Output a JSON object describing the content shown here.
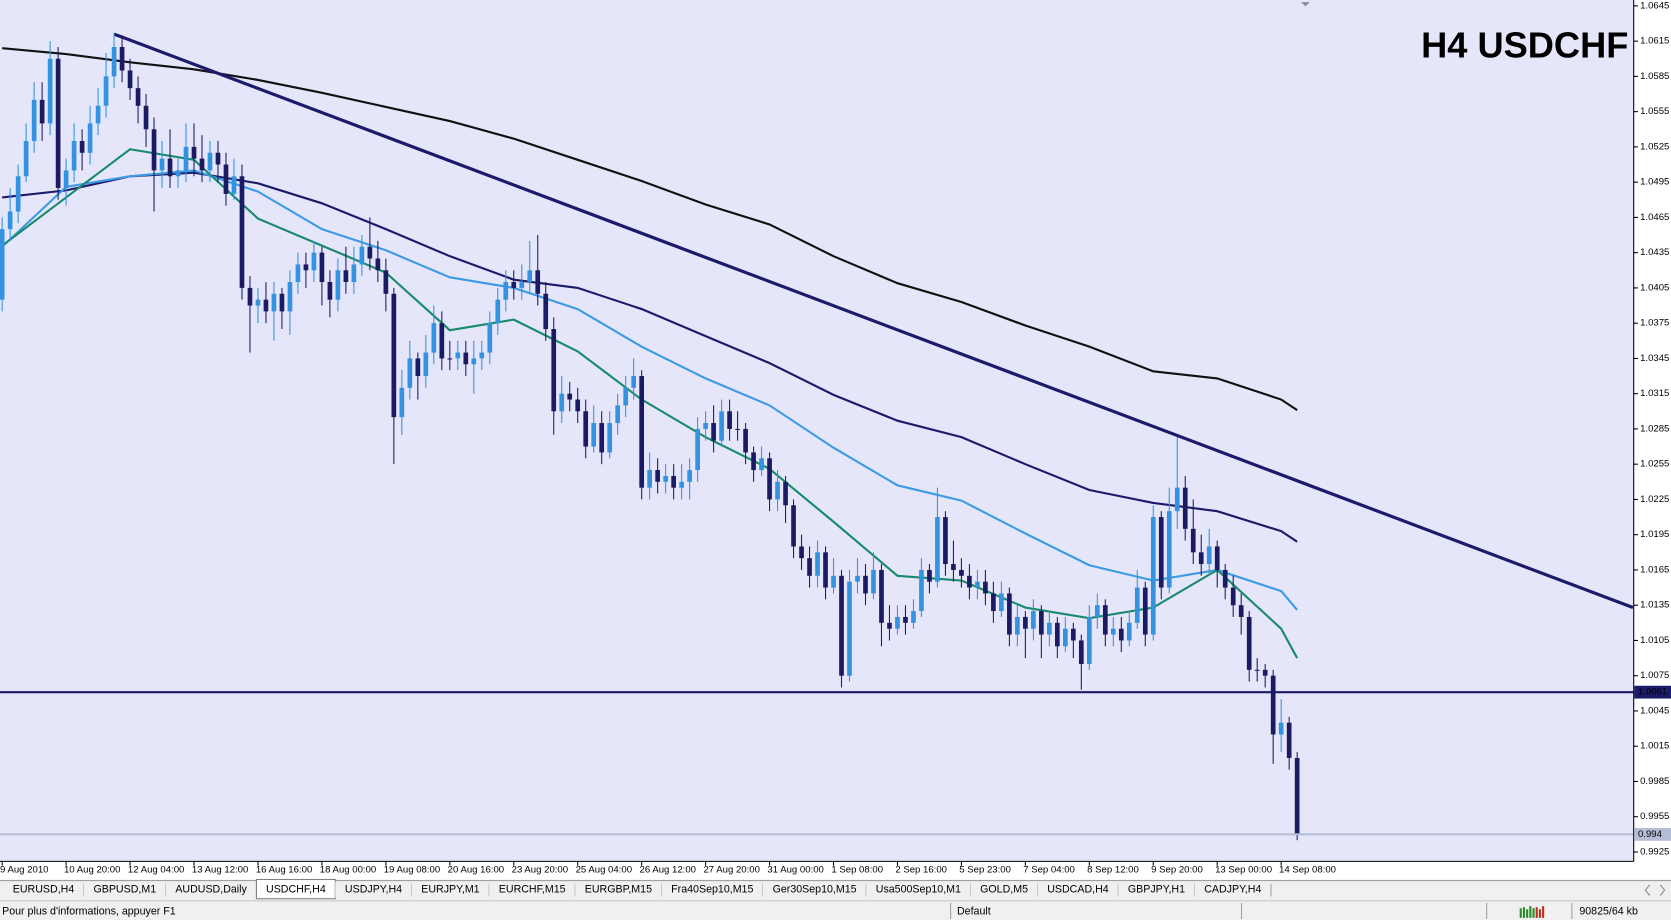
{
  "chart_data": {
    "type": "candlestick",
    "title": "H4 USDCHF",
    "up_color": "#3393e0",
    "down_color": "#1b1b63",
    "background": "#e6e6fa",
    "xlim": [
      -0.27,
      204.1
    ],
    "ylim": [
      0.9917,
      1.065
    ],
    "yticks": [
      1.0645,
      1.0615,
      1.0585,
      1.0555,
      1.0525,
      1.0495,
      1.0465,
      1.0435,
      1.0405,
      1.0375,
      1.0345,
      1.0315,
      1.0285,
      1.0255,
      1.0225,
      1.0195,
      1.0165,
      1.0135,
      1.0105,
      1.0075,
      1.0045,
      1.0015,
      0.9985,
      0.9955,
      0.9925
    ],
    "categories": [
      "9 Aug 2010",
      null,
      null,
      null,
      null,
      null,
      null,
      null,
      "10 Aug 20:00",
      null,
      null,
      null,
      null,
      null,
      null,
      null,
      "12 Aug 04:00",
      null,
      null,
      null,
      null,
      null,
      null,
      null,
      "13 Aug 12:00",
      null,
      null,
      null,
      null,
      null,
      null,
      null,
      "16 Aug 16:00",
      null,
      null,
      null,
      null,
      null,
      null,
      null,
      "18 Aug 00:00",
      null,
      null,
      null,
      null,
      null,
      null,
      null,
      "19 Aug 08:00",
      null,
      null,
      null,
      null,
      null,
      null,
      null,
      "20 Aug 16:00",
      null,
      null,
      null,
      null,
      null,
      null,
      null,
      "23 Aug 20:00",
      null,
      null,
      null,
      null,
      null,
      null,
      null,
      "25 Aug 04:00",
      null,
      null,
      null,
      null,
      null,
      null,
      null,
      "26 Aug 12:00",
      null,
      null,
      null,
      null,
      null,
      null,
      null,
      "27 Aug 20:00",
      null,
      null,
      null,
      null,
      null,
      null,
      null,
      "31 Aug 00:00",
      null,
      null,
      null,
      null,
      null,
      null,
      null,
      "1 Sep 08:00",
      null,
      null,
      null,
      null,
      null,
      null,
      null,
      "2 Sep 16:00",
      null,
      null,
      null,
      null,
      null,
      null,
      null,
      "5 Sep 23:00",
      null,
      null,
      null,
      null,
      null,
      null,
      null,
      "7 Sep 04:00",
      null,
      null,
      null,
      null,
      null,
      null,
      null,
      "8 Sep 12:00",
      null,
      null,
      null,
      null,
      null,
      null,
      null,
      "9 Sep 20:00",
      null,
      null,
      null,
      null,
      null,
      null,
      null,
      "13 Sep 00:00",
      null,
      null,
      null,
      null,
      null,
      null,
      null,
      "14 Sep 08:00",
      null,
      null
    ],
    "open": [
      1.0395,
      1.0455,
      1.047,
      1.05,
      1.053,
      1.0565,
      1.0545,
      1.06,
      1.049,
      1.0505,
      1.053,
      1.052,
      1.0545,
      1.056,
      1.0585,
      1.061,
      1.059,
      1.0575,
      1.056,
      1.054,
      1.0505,
      1.0515,
      1.05,
      1.0505,
      1.0525,
      1.0515,
      1.0505,
      1.052,
      1.051,
      1.0485,
      1.05,
      1.0405,
      1.039,
      1.0395,
      1.0385,
      1.04,
      1.0385,
      1.041,
      1.0425,
      1.042,
      1.0435,
      1.041,
      1.0395,
      1.042,
      1.041,
      1.0425,
      1.044,
      1.043,
      1.042,
      1.04,
      1.0295,
      1.032,
      1.0345,
      1.033,
      1.035,
      1.0375,
      1.0345,
      1.0345,
      1.035,
      1.034,
      1.0345,
      1.035,
      1.0375,
      1.0395,
      1.041,
      1.0405,
      1.041,
      1.042,
      1.04,
      1.037,
      1.03,
      1.0315,
      1.031,
      1.03,
      1.027,
      1.029,
      1.0265,
      1.029,
      1.0305,
      1.032,
      1.033,
      1.0235,
      1.025,
      1.024,
      1.0245,
      1.0235,
      1.024,
      1.025,
      1.0285,
      1.029,
      1.0275,
      1.03,
      1.0285,
      1.0285,
      1.0265,
      1.025,
      1.026,
      1.0225,
      1.024,
      1.022,
      1.0185,
      1.0175,
      1.016,
      1.018,
      1.015,
      1.016,
      1.0075,
      1.0155,
      1.016,
      1.0145,
      1.0165,
      1.012,
      1.0115,
      1.0125,
      1.012,
      1.013,
      1.0165,
      1.0155,
      1.021,
      1.017,
      1.0165,
      1.016,
      1.015,
      1.0155,
      1.0145,
      1.013,
      1.0145,
      1.011,
      1.0125,
      1.0115,
      1.013,
      1.011,
      1.012,
      1.01,
      1.0115,
      1.0105,
      1.0085,
      1.0125,
      1.0135,
      1.011,
      1.0115,
      1.0105,
      1.012,
      1.015,
      1.011,
      1.021,
      1.015,
      1.0215,
      1.0235,
      1.02,
      1.018,
      1.017,
      1.0185,
      1.0165,
      1.015,
      1.0135,
      1.0125,
      1.008,
      1.008,
      1.0075,
      1.0025,
      1.0035,
      1.0005
    ],
    "high": [
      1.0465,
      1.049,
      1.051,
      1.0545,
      1.058,
      1.058,
      1.0615,
      1.061,
      1.0515,
      1.0545,
      1.054,
      1.056,
      1.0575,
      1.0605,
      1.0622,
      1.062,
      1.06,
      1.0585,
      1.057,
      1.055,
      1.053,
      1.054,
      1.0515,
      1.0545,
      1.0545,
      1.0535,
      1.053,
      1.053,
      1.052,
      1.0515,
      1.051,
      1.0415,
      1.0405,
      1.041,
      1.041,
      1.0405,
      1.042,
      1.0435,
      1.0435,
      1.0445,
      1.044,
      1.042,
      1.043,
      1.044,
      1.044,
      1.045,
      1.0465,
      1.0445,
      1.043,
      1.0405,
      1.0335,
      1.036,
      1.035,
      1.0365,
      1.039,
      1.0385,
      1.036,
      1.036,
      1.036,
      1.036,
      1.036,
      1.0385,
      1.0405,
      1.042,
      1.042,
      1.0425,
      1.0445,
      1.045,
      1.041,
      1.038,
      1.033,
      1.0325,
      1.032,
      1.031,
      1.0305,
      1.03,
      1.03,
      1.0315,
      1.033,
      1.0345,
      1.0335,
      1.0265,
      1.026,
      1.0255,
      1.0255,
      1.0255,
      1.026,
      1.0295,
      1.03,
      1.0305,
      1.031,
      1.031,
      1.03,
      1.029,
      1.027,
      1.027,
      1.0265,
      1.025,
      1.0245,
      1.0225,
      1.0195,
      1.0185,
      1.019,
      1.0185,
      1.0175,
      1.0165,
      1.0165,
      1.0175,
      1.017,
      1.018,
      1.017,
      1.0135,
      1.0135,
      1.0135,
      1.014,
      1.0175,
      1.017,
      1.0235,
      1.0215,
      1.019,
      1.0175,
      1.017,
      1.0165,
      1.0165,
      1.0155,
      1.0155,
      1.015,
      1.0135,
      1.013,
      1.014,
      1.0135,
      1.013,
      1.0125,
      1.0125,
      1.012,
      1.011,
      1.0135,
      1.0145,
      1.014,
      1.0125,
      1.0125,
      1.013,
      1.0165,
      1.0155,
      1.022,
      1.0215,
      1.0235,
      1.0278,
      1.0245,
      1.0225,
      1.0195,
      1.02,
      1.019,
      1.017,
      1.016,
      1.0145,
      1.013,
      1.009,
      1.0085,
      1.008,
      1.0055,
      1.004,
      1.001
    ],
    "low": [
      1.0385,
      1.0445,
      1.046,
      1.0495,
      1.052,
      1.053,
      1.0535,
      1.048,
      1.0475,
      1.0495,
      1.0505,
      1.051,
      1.0535,
      1.055,
      1.0575,
      1.058,
      1.0565,
      1.0545,
      1.0525,
      1.047,
      1.049,
      1.049,
      1.049,
      1.0495,
      1.05,
      1.0495,
      1.0495,
      1.0495,
      1.0475,
      1.048,
      1.0395,
      1.035,
      1.0375,
      1.0375,
      1.036,
      1.037,
      1.0365,
      1.04,
      1.0405,
      1.041,
      1.039,
      1.038,
      1.0385,
      1.04,
      1.04,
      1.0415,
      1.042,
      1.041,
      1.0385,
      1.0255,
      1.028,
      1.031,
      1.031,
      1.032,
      1.034,
      1.0335,
      1.0335,
      1.0335,
      1.033,
      1.0315,
      1.0335,
      1.034,
      1.0365,
      1.0385,
      1.0395,
      1.0395,
      1.04,
      1.039,
      1.036,
      1.028,
      1.029,
      1.03,
      1.029,
      1.026,
      1.0265,
      1.0255,
      1.026,
      1.028,
      1.0295,
      1.031,
      1.0225,
      1.0225,
      1.023,
      1.023,
      1.0225,
      1.0225,
      1.0225,
      1.024,
      1.0275,
      1.0265,
      1.027,
      1.0275,
      1.0275,
      1.0255,
      1.024,
      1.0245,
      1.0215,
      1.0215,
      1.0205,
      1.0175,
      1.0165,
      1.015,
      1.015,
      1.014,
      1.0145,
      1.0065,
      1.007,
      1.0145,
      1.0135,
      1.014,
      1.01,
      1.0105,
      1.011,
      1.011,
      1.0115,
      1.0125,
      1.0145,
      1.015,
      1.016,
      1.0155,
      1.015,
      1.014,
      1.014,
      1.0135,
      1.012,
      1.0125,
      1.01,
      1.01,
      1.009,
      1.0105,
      1.009,
      1.01,
      1.009,
      1.0095,
      1.009,
      1.0063,
      1.008,
      1.0115,
      1.01,
      1.01,
      1.0095,
      1.01,
      1.0115,
      1.01,
      1.0105,
      1.014,
      1.0145,
      1.02,
      1.019,
      1.017,
      1.016,
      1.016,
      1.015,
      1.014,
      1.0125,
      1.011,
      1.007,
      1.007,
      1.0065,
      1.0,
      1.001,
      0.9995,
      0.9935
    ],
    "close": [
      1.0455,
      1.047,
      1.05,
      1.053,
      1.0565,
      1.0545,
      1.06,
      1.049,
      1.0505,
      1.053,
      1.052,
      1.0545,
      1.056,
      1.0585,
      1.061,
      1.059,
      1.0575,
      1.056,
      1.054,
      1.0505,
      1.0515,
      1.05,
      1.0505,
      1.0525,
      1.0515,
      1.0505,
      1.052,
      1.051,
      1.0485,
      1.05,
      1.0405,
      1.039,
      1.0395,
      1.0385,
      1.04,
      1.0385,
      1.041,
      1.0425,
      1.042,
      1.0435,
      1.041,
      1.0395,
      1.042,
      1.041,
      1.0425,
      1.044,
      1.043,
      1.042,
      1.04,
      1.0295,
      1.032,
      1.0345,
      1.033,
      1.035,
      1.0375,
      1.0345,
      1.0345,
      1.035,
      1.034,
      1.0345,
      1.035,
      1.0375,
      1.0395,
      1.041,
      1.0405,
      1.041,
      1.042,
      1.04,
      1.037,
      1.03,
      1.0315,
      1.031,
      1.03,
      1.027,
      1.029,
      1.0265,
      1.029,
      1.0305,
      1.032,
      1.033,
      1.0235,
      1.025,
      1.024,
      1.0245,
      1.0235,
      1.024,
      1.025,
      1.0285,
      1.029,
      1.0275,
      1.03,
      1.0285,
      1.0285,
      1.0265,
      1.025,
      1.026,
      1.0225,
      1.024,
      1.022,
      1.0185,
      1.0175,
      1.016,
      1.018,
      1.015,
      1.016,
      1.0075,
      1.0155,
      1.016,
      1.0145,
      1.0165,
      1.012,
      1.0115,
      1.0125,
      1.012,
      1.013,
      1.0165,
      1.0155,
      1.021,
      1.017,
      1.0165,
      1.016,
      1.015,
      1.0155,
      1.0145,
      1.013,
      1.0145,
      1.011,
      1.0125,
      1.0115,
      1.013,
      1.011,
      1.012,
      1.01,
      1.0115,
      1.0105,
      1.0085,
      1.0125,
      1.0135,
      1.011,
      1.0115,
      1.0105,
      1.012,
      1.015,
      1.011,
      1.021,
      1.015,
      1.0215,
      1.0235,
      1.02,
      1.018,
      1.017,
      1.0185,
      1.0165,
      1.015,
      1.0135,
      1.0125,
      1.008,
      1.008,
      1.0075,
      1.0025,
      1.0035,
      1.0005,
      0.994
    ],
    "indicators": [
      {
        "color": "#111111",
        "x": [
          0,
          8,
          16,
          24,
          32,
          40,
          48,
          56,
          64,
          72,
          80,
          88,
          96,
          104,
          112,
          120,
          128,
          136,
          144,
          152,
          160,
          162
        ],
        "values": [
          1.0609,
          1.0604,
          1.0597,
          1.0591,
          1.0582,
          1.0571,
          1.0559,
          1.0547,
          1.0532,
          1.0514,
          1.0496,
          1.0476,
          1.0459,
          1.0432,
          1.0409,
          1.0393,
          1.0373,
          1.0355,
          1.0334,
          1.0328,
          1.031,
          1.0301
        ]
      },
      {
        "color": "#1b1b6b",
        "x": [
          0,
          8,
          16,
          24,
          32,
          40,
          48,
          56,
          64,
          72,
          80,
          88,
          96,
          104,
          112,
          120,
          128,
          136,
          144,
          152,
          160,
          162
        ],
        "values": [
          1.0482,
          1.0488,
          1.05,
          1.0503,
          1.0494,
          1.0477,
          1.0455,
          1.0432,
          1.0412,
          1.0405,
          1.0387,
          1.0364,
          1.0341,
          1.0314,
          1.0292,
          1.0278,
          1.0255,
          1.0233,
          1.0222,
          1.0215,
          1.0198,
          1.0189
        ]
      },
      {
        "color": "#3d9be3",
        "x": [
          0,
          8,
          16,
          24,
          32,
          40,
          48,
          56,
          64,
          72,
          80,
          88,
          96,
          104,
          112,
          120,
          128,
          136,
          144,
          152,
          160,
          162
        ],
        "values": [
          1.044,
          1.0491,
          1.05,
          1.0505,
          1.0487,
          1.0455,
          1.0437,
          1.0414,
          1.0405,
          1.0387,
          1.0355,
          1.0328,
          1.0305,
          1.0269,
          1.0237,
          1.0224,
          1.0196,
          1.0169,
          1.0156,
          1.0165,
          1.0147,
          1.0131
        ]
      },
      {
        "color": "#1a8a6e",
        "x": [
          0,
          8,
          16,
          24,
          32,
          40,
          48,
          56,
          64,
          72,
          80,
          88,
          96,
          104,
          112,
          120,
          128,
          136,
          144,
          152,
          160,
          162
        ],
        "values": [
          1.0441,
          1.0482,
          1.0523,
          1.0514,
          1.0464,
          1.0441,
          1.0418,
          1.0369,
          1.0378,
          1.0351,
          1.031,
          1.0278,
          1.0251,
          1.0206,
          1.016,
          1.0156,
          1.0133,
          1.0124,
          1.0133,
          1.0165,
          1.0115,
          1.009
        ]
      }
    ],
    "trendline": {
      "color": "#1b1b6b",
      "x": [
        14,
        204
      ],
      "values": [
        1.0621,
        1.0133
      ]
    },
    "price_lines": [
      {
        "value": 1.0061,
        "color": "#1b1b6b",
        "text_color": "#ffffff"
      },
      {
        "value": 0.994,
        "color": "#b4bdd6",
        "text_color": "#1b1b6b"
      }
    ]
  },
  "tabs": [
    {
      "label": "EURUSD,H4",
      "active": false
    },
    {
      "label": "GBPUSD,M1",
      "active": false
    },
    {
      "label": "AUDUSD,Daily",
      "active": false
    },
    {
      "label": "USDCHF,H4",
      "active": true
    },
    {
      "label": "USDJPY,H4",
      "active": false
    },
    {
      "label": "EURJPY,M1",
      "active": false
    },
    {
      "label": "EURCHF,M15",
      "active": false
    },
    {
      "label": "EURGBP,M15",
      "active": false
    },
    {
      "label": "Fra40Sep10,M15",
      "active": false
    },
    {
      "label": "Ger30Sep10,M15",
      "active": false
    },
    {
      "label": "Usa500Sep10,M1",
      "active": false
    },
    {
      "label": "GOLD,M5",
      "active": false
    },
    {
      "label": "USDCAD,H4",
      "active": false
    },
    {
      "label": "GBPJPY,H1",
      "active": false
    },
    {
      "label": "CADJPY,H4",
      "active": false
    }
  ],
  "status_bar": {
    "help": "Pour plus d'informations, appuyer F1",
    "profile": "Default",
    "memory": "90825/64 kb"
  }
}
